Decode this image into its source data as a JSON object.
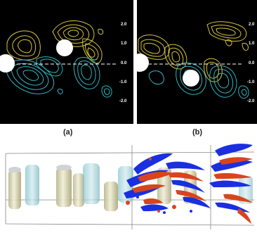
{
  "figure": {
    "panels": [
      {
        "id": "a",
        "caption": "(a)",
        "y_ticks": [
          "2.0",
          "1.0",
          "0.0",
          "-1.0",
          "-2.0"
        ],
        "colors": {
          "positive": "#d8c43a",
          "negative": "#2fb4bf",
          "background": "#000000",
          "centerline": "#ffffff"
        }
      },
      {
        "id": "b",
        "caption": "(b)",
        "y_ticks": [
          "2.0",
          "1.0",
          "0.0",
          "-1.0",
          "-2.0"
        ],
        "colors": {
          "positive": "#d8c43a",
          "negative": "#2fb4bf",
          "background": "#000000",
          "centerline": "#ffffff"
        }
      }
    ],
    "render_3d": {
      "colors": {
        "cylinder_fill": "#cdc9a0",
        "cylinder_cyan": "#9fd0d6",
        "vortex_blue": "#1a2fe0",
        "vortex_red": "#d9441e"
      }
    }
  }
}
